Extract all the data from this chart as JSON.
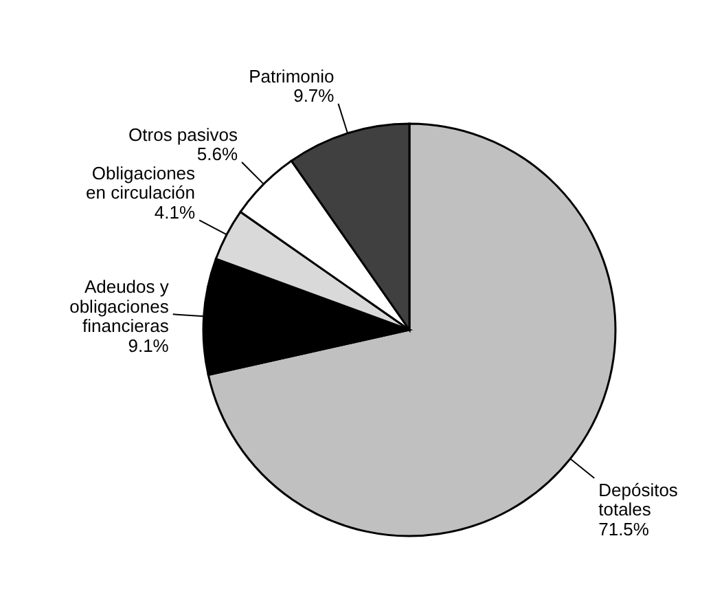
{
  "chart_data": {
    "type": "pie",
    "categories": [
      "Depósitos totales",
      "Adeudos y obligaciones financieras",
      "Obligaciones en circulación",
      "Otros pasivos",
      "Patrimonio"
    ],
    "values": [
      71.5,
      9.1,
      4.1,
      5.6,
      9.7
    ],
    "value_labels": [
      "71.5%",
      "9.1%",
      "4.1%",
      "5.6%",
      "9.7%"
    ],
    "colors": [
      "#c0c0c0",
      "#000000",
      "#d9d9d9",
      "#ffffff",
      "#404040"
    ]
  }
}
